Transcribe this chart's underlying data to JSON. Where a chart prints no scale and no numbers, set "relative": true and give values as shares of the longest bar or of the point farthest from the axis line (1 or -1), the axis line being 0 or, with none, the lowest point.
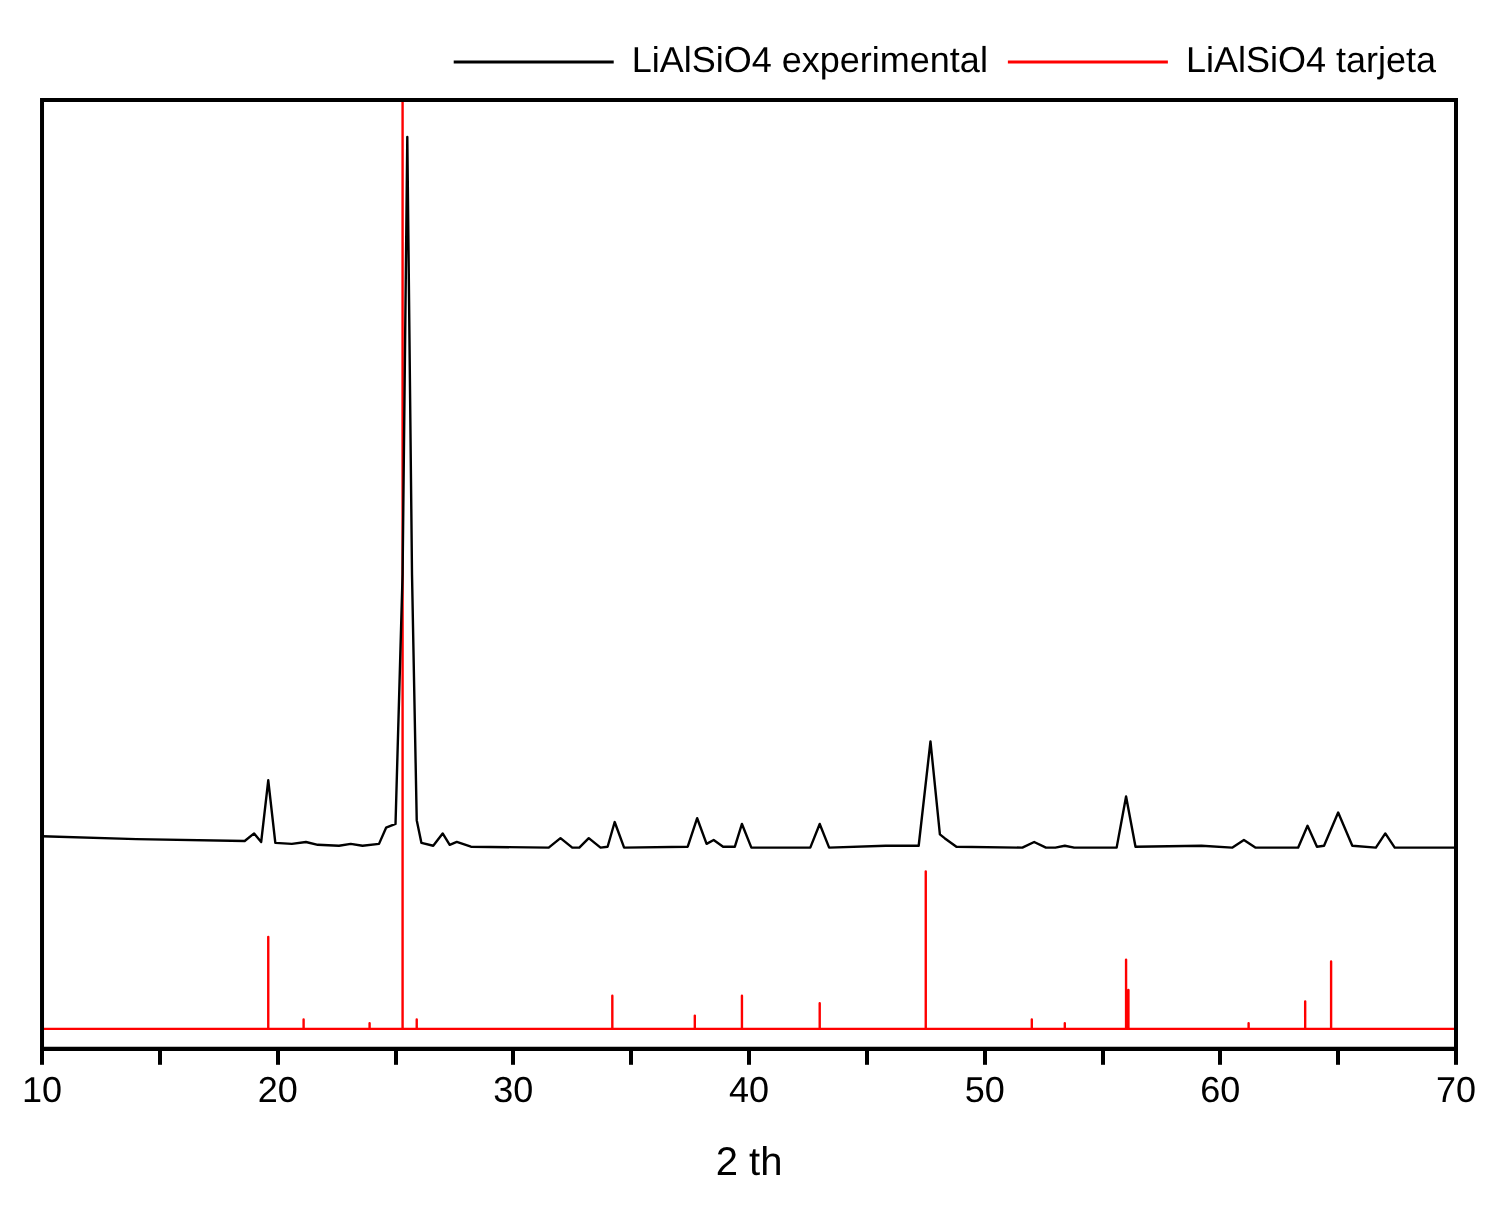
{
  "chart_data": {
    "type": "line",
    "relative": true,
    "xlabel": "2 th",
    "xlim": [
      10,
      70
    ],
    "xticks": [
      10,
      {
        "value": 15,
        "label": null
      },
      20,
      {
        "value": 25,
        "label": null
      },
      30,
      {
        "value": 35,
        "label": null
      },
      40,
      {
        "value": 45,
        "label": null
      },
      50,
      {
        "value": 55,
        "label": null
      },
      60,
      {
        "value": 65,
        "label": null
      },
      70
    ],
    "grid": false,
    "legend": "top right",
    "marker": "none",
    "line_style": "solid",
    "series": [
      {
        "name": "LiAlSiO4 experimental",
        "color": "#000000",
        "x": [
          10,
          14,
          18.6,
          19.0,
          19.3,
          19.6,
          19.9,
          20.6,
          21.2,
          21.7,
          22.6,
          23.1,
          23.6,
          24.3,
          24.6,
          25.0,
          25.3,
          25.5,
          25.7,
          25.9,
          26.1,
          26.6,
          27.0,
          27.3,
          27.6,
          28.2,
          31.5,
          32.0,
          32.5,
          32.8,
          33.2,
          33.7,
          34.0,
          34.3,
          34.7,
          37.4,
          37.8,
          38.2,
          38.5,
          38.9,
          39.4,
          39.7,
          40.1,
          42.6,
          43.0,
          43.4,
          45.8,
          47.2,
          47.7,
          48.1,
          48.3,
          48.8,
          51.6,
          52.1,
          52.6,
          53.0,
          53.4,
          53.8,
          55.6,
          56.0,
          56.4,
          59.2,
          60.5,
          61.0,
          61.5,
          63.3,
          63.7,
          64.1,
          64.4,
          65.0,
          65.6,
          66.6,
          67.0,
          67.4,
          70
        ],
        "values": [
          0.224,
          0.221,
          0.219,
          0.227,
          0.218,
          0.283,
          0.217,
          0.216,
          0.218,
          0.215,
          0.214,
          0.216,
          0.214,
          0.216,
          0.233,
          0.237,
          0.5,
          0.961,
          0.5,
          0.241,
          0.217,
          0.214,
          0.227,
          0.215,
          0.218,
          0.213,
          0.212,
          0.222,
          0.212,
          0.212,
          0.222,
          0.212,
          0.213,
          0.239,
          0.212,
          0.213,
          0.243,
          0.216,
          0.22,
          0.213,
          0.213,
          0.237,
          0.212,
          0.212,
          0.237,
          0.212,
          0.214,
          0.214,
          0.324,
          0.226,
          0.222,
          0.213,
          0.212,
          0.218,
          0.212,
          0.212,
          0.214,
          0.212,
          0.212,
          0.266,
          0.213,
          0.214,
          0.212,
          0.22,
          0.212,
          0.212,
          0.235,
          0.213,
          0.214,
          0.249,
          0.214,
          0.212,
          0.227,
          0.212,
          0.212
        ]
      },
      {
        "name": "LiAlSiO4 tarjeta",
        "color": "#ff0000",
        "x": [
          10,
          19.6,
          19.6,
          19.6,
          21.1,
          21.1,
          21.1,
          23.9,
          23.9,
          23.9,
          25.3,
          25.3,
          25.3,
          25.9,
          25.9,
          25.9,
          34.2,
          34.2,
          34.2,
          37.7,
          37.7,
          37.7,
          39.7,
          39.7,
          39.7,
          43.0,
          43.0,
          43.0,
          47.5,
          47.5,
          47.5,
          52.0,
          52.0,
          52.0,
          53.4,
          53.4,
          53.4,
          56.0,
          56.0,
          56.0,
          56.1,
          56.1,
          56.1,
          61.2,
          61.2,
          61.2,
          63.6,
          63.6,
          63.6,
          64.7,
          64.7,
          64.7,
          70
        ],
        "values": [
          0.021,
          0.021,
          0.118,
          0.021,
          0.021,
          0.031,
          0.021,
          0.021,
          0.027,
          0.021,
          0.021,
          1,
          0.021,
          0.021,
          0.031,
          0.021,
          0.021,
          0.056,
          0.021,
          0.021,
          0.035,
          0.021,
          0.021,
          0.056,
          0.021,
          0.021,
          0.048,
          0.021,
          0.021,
          0.187,
          0.021,
          0.021,
          0.031,
          0.021,
          0.021,
          0.027,
          0.021,
          0.021,
          0.094,
          0.021,
          0.021,
          0.062,
          0.021,
          0.021,
          0.027,
          0.021,
          0.021,
          0.05,
          0.021,
          0.021,
          0.092,
          0.021,
          0.021
        ]
      }
    ]
  }
}
